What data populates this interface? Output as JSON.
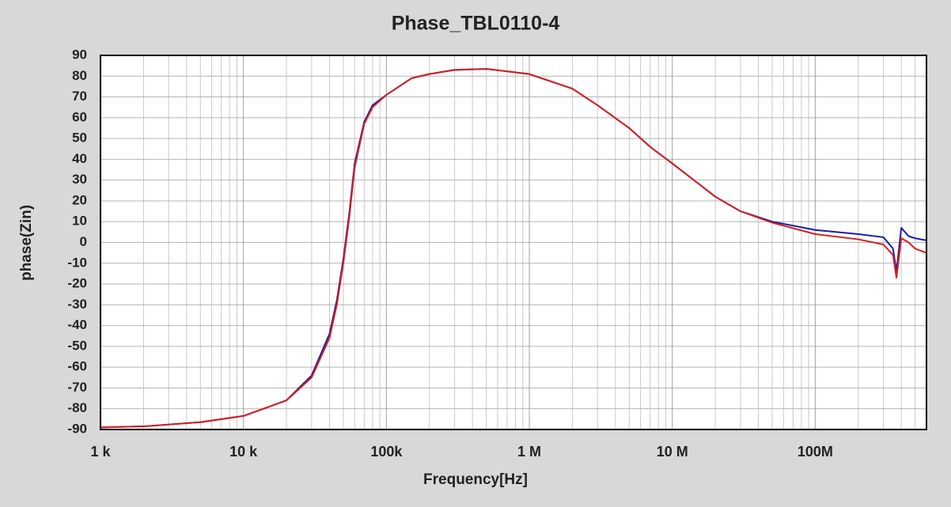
{
  "chart_data": {
    "type": "line",
    "title": "Phase_TBL0110-4",
    "xlabel": "Frequency[Hz]",
    "ylabel": "phase(Zin)",
    "xscale": "log",
    "grid": true,
    "xlim": [
      1000,
      600000000
    ],
    "xticks": [
      {
        "value": 1000,
        "label": "1 k"
      },
      {
        "value": 10000,
        "label": "10 k"
      },
      {
        "value": 100000,
        "label": "100k"
      },
      {
        "value": 1000000,
        "label": "1 M"
      },
      {
        "value": 10000000,
        "label": "10 M"
      },
      {
        "value": 100000000,
        "label": "100M"
      }
    ],
    "ylim": [
      -90,
      90
    ],
    "yticks": [
      -90,
      -80,
      -70,
      -60,
      -50,
      -40,
      -30,
      -20,
      -10,
      0,
      10,
      20,
      30,
      40,
      50,
      60,
      70,
      80,
      90
    ],
    "x": [
      1000,
      2000,
      5000,
      10000,
      20000,
      30000,
      40000,
      45000,
      50000,
      55000,
      60000,
      70000,
      80000,
      100000,
      150000,
      200000,
      300000,
      500000,
      1000000,
      2000000,
      3000000,
      5000000,
      7000000,
      10000000,
      20000000,
      30000000,
      50000000,
      100000000,
      200000000,
      300000000,
      350000000,
      370000000,
      400000000,
      450000000,
      500000000,
      600000000
    ],
    "series": [
      {
        "name": "blue",
        "color": "#1c1ca8",
        "values": [
          -89,
          -88.5,
          -86.5,
          -83.5,
          -76,
          -64,
          -44,
          -28,
          -8,
          14,
          38,
          58,
          66,
          71,
          79,
          81,
          83,
          83.5,
          81,
          74,
          66,
          55,
          46,
          38,
          22,
          15,
          10,
          6,
          4,
          2.5,
          -3,
          -14,
          7,
          3,
          2,
          1
        ]
      },
      {
        "name": "red",
        "color": "#d42020",
        "values": [
          -89,
          -88.5,
          -86.5,
          -83.5,
          -76,
          -65,
          -46,
          -30,
          -10,
          12,
          36,
          57,
          65,
          71,
          79,
          81,
          83,
          83.5,
          81,
          74,
          66,
          55,
          46,
          38,
          22,
          15,
          9.5,
          4,
          1.5,
          -1,
          -6,
          -17,
          2,
          0,
          -3,
          -5
        ]
      }
    ]
  }
}
